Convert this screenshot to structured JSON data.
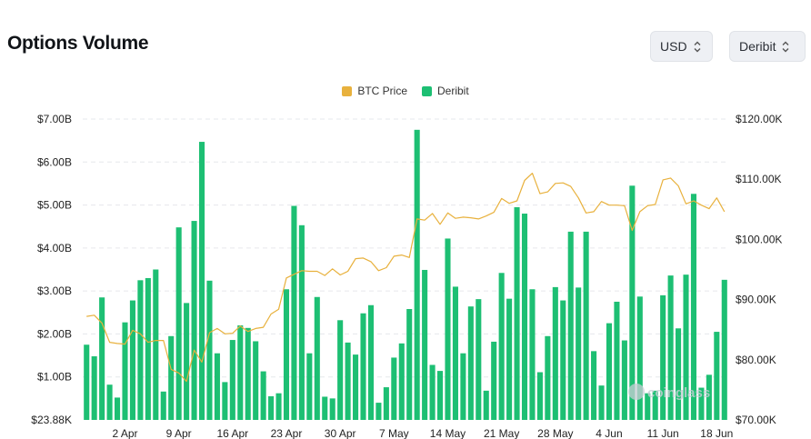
{
  "header": {
    "title": "Options Volume",
    "currency_select": "USD",
    "exchange_select": "Deribit"
  },
  "watermark": "coinglass",
  "colors": {
    "btc": "#e8b13d",
    "deribit": "#1dbf73",
    "grid": "#e6e8ec"
  },
  "chart_data": {
    "type": "bar",
    "legend": [
      {
        "name": "BTC Price",
        "color": "#e8b13d"
      },
      {
        "name": "Deribit",
        "color": "#1dbf73"
      }
    ],
    "left_axis": {
      "ticks": [
        "$23.88K",
        "$1.00B",
        "$2.00B",
        "$3.00B",
        "$4.00B",
        "$5.00B",
        "$6.00B",
        "$7.00B"
      ],
      "tick_values": [
        0,
        1,
        2,
        3,
        4,
        5,
        6,
        7
      ],
      "unit": "billion USD",
      "range": [
        0,
        7
      ]
    },
    "right_axis": {
      "ticks": [
        "$70.00K",
        "$80.00K",
        "$90.00K",
        "$100.00K",
        "$110.00K",
        "$120.00K"
      ],
      "tick_values": [
        70,
        80,
        90,
        100,
        110,
        120
      ],
      "unit": "thousand USD",
      "range": [
        70,
        120
      ]
    },
    "x_ticks": [
      "2 Apr",
      "9 Apr",
      "16 Apr",
      "23 Apr",
      "30 Apr",
      "7 May",
      "14 May",
      "21 May",
      "28 May",
      "4 Jun",
      "11 Jun",
      "18 Jun"
    ],
    "x_tick_index": [
      5,
      12,
      19,
      26,
      33,
      40,
      47,
      54,
      61,
      68,
      75,
      82
    ],
    "series": [
      {
        "name": "Deribit",
        "kind": "bar",
        "values": [
          1.75,
          1.48,
          2.85,
          0.82,
          0.52,
          2.27,
          2.78,
          3.25,
          3.3,
          3.5,
          0.66,
          1.95,
          4.48,
          2.72,
          4.63,
          6.47,
          3.24,
          1.55,
          0.88,
          1.86,
          2.2,
          2.14,
          1.83,
          1.13,
          0.55,
          0.62,
          3.04,
          4.98,
          4.53,
          1.55,
          2.86,
          0.54,
          0.5,
          2.32,
          1.8,
          1.52,
          2.48,
          2.67,
          0.4,
          0.76,
          1.45,
          1.78,
          2.58,
          6.75,
          3.49,
          1.28,
          1.14,
          4.22,
          3.1,
          1.55,
          2.64,
          2.81,
          0.68,
          1.82,
          3.42,
          2.82,
          4.95,
          4.8,
          3.04,
          1.11,
          1.95,
          3.09,
          2.78,
          4.38,
          3.08,
          4.38,
          1.6,
          0.8,
          2.25,
          2.75,
          1.85,
          5.45,
          2.87,
          0.62,
          0.68,
          2.9,
          3.36,
          2.13,
          3.38,
          5.26,
          0.75,
          1.05,
          2.05,
          3.26
        ]
      },
      {
        "name": "BTC Price",
        "kind": "line",
        "values": [
          87.2,
          87.4,
          86.1,
          82.9,
          82.7,
          82.6,
          84.9,
          84.3,
          82.9,
          83.2,
          83.2,
          78.4,
          77.8,
          76.4,
          81.6,
          79.6,
          84.5,
          85.2,
          84.3,
          84.4,
          85.6,
          84.7,
          85.2,
          85.4,
          87.6,
          88.4,
          93.6,
          94.2,
          94.8,
          94.7,
          94.7,
          94.0,
          95.1,
          94.1,
          94.7,
          96.8,
          96.9,
          96.3,
          94.8,
          95.3,
          97.2,
          97.4,
          97.0,
          103.4,
          103.2,
          104.3,
          102.5,
          104.4,
          103.5,
          103.7,
          103.6,
          103.4,
          103.9,
          104.5,
          106.8,
          106.0,
          106.4,
          109.8,
          111.0,
          107.6,
          107.9,
          109.3,
          109.4,
          108.8,
          106.9,
          104.4,
          104.6,
          106.3,
          105.7,
          105.7,
          105.6,
          101.5,
          104.6,
          105.6,
          105.8,
          109.9,
          110.2,
          108.9,
          105.9,
          106.4,
          105.7,
          105.1,
          106.9,
          104.6
        ]
      }
    ],
    "grid": true,
    "legend_position": "top-center"
  }
}
